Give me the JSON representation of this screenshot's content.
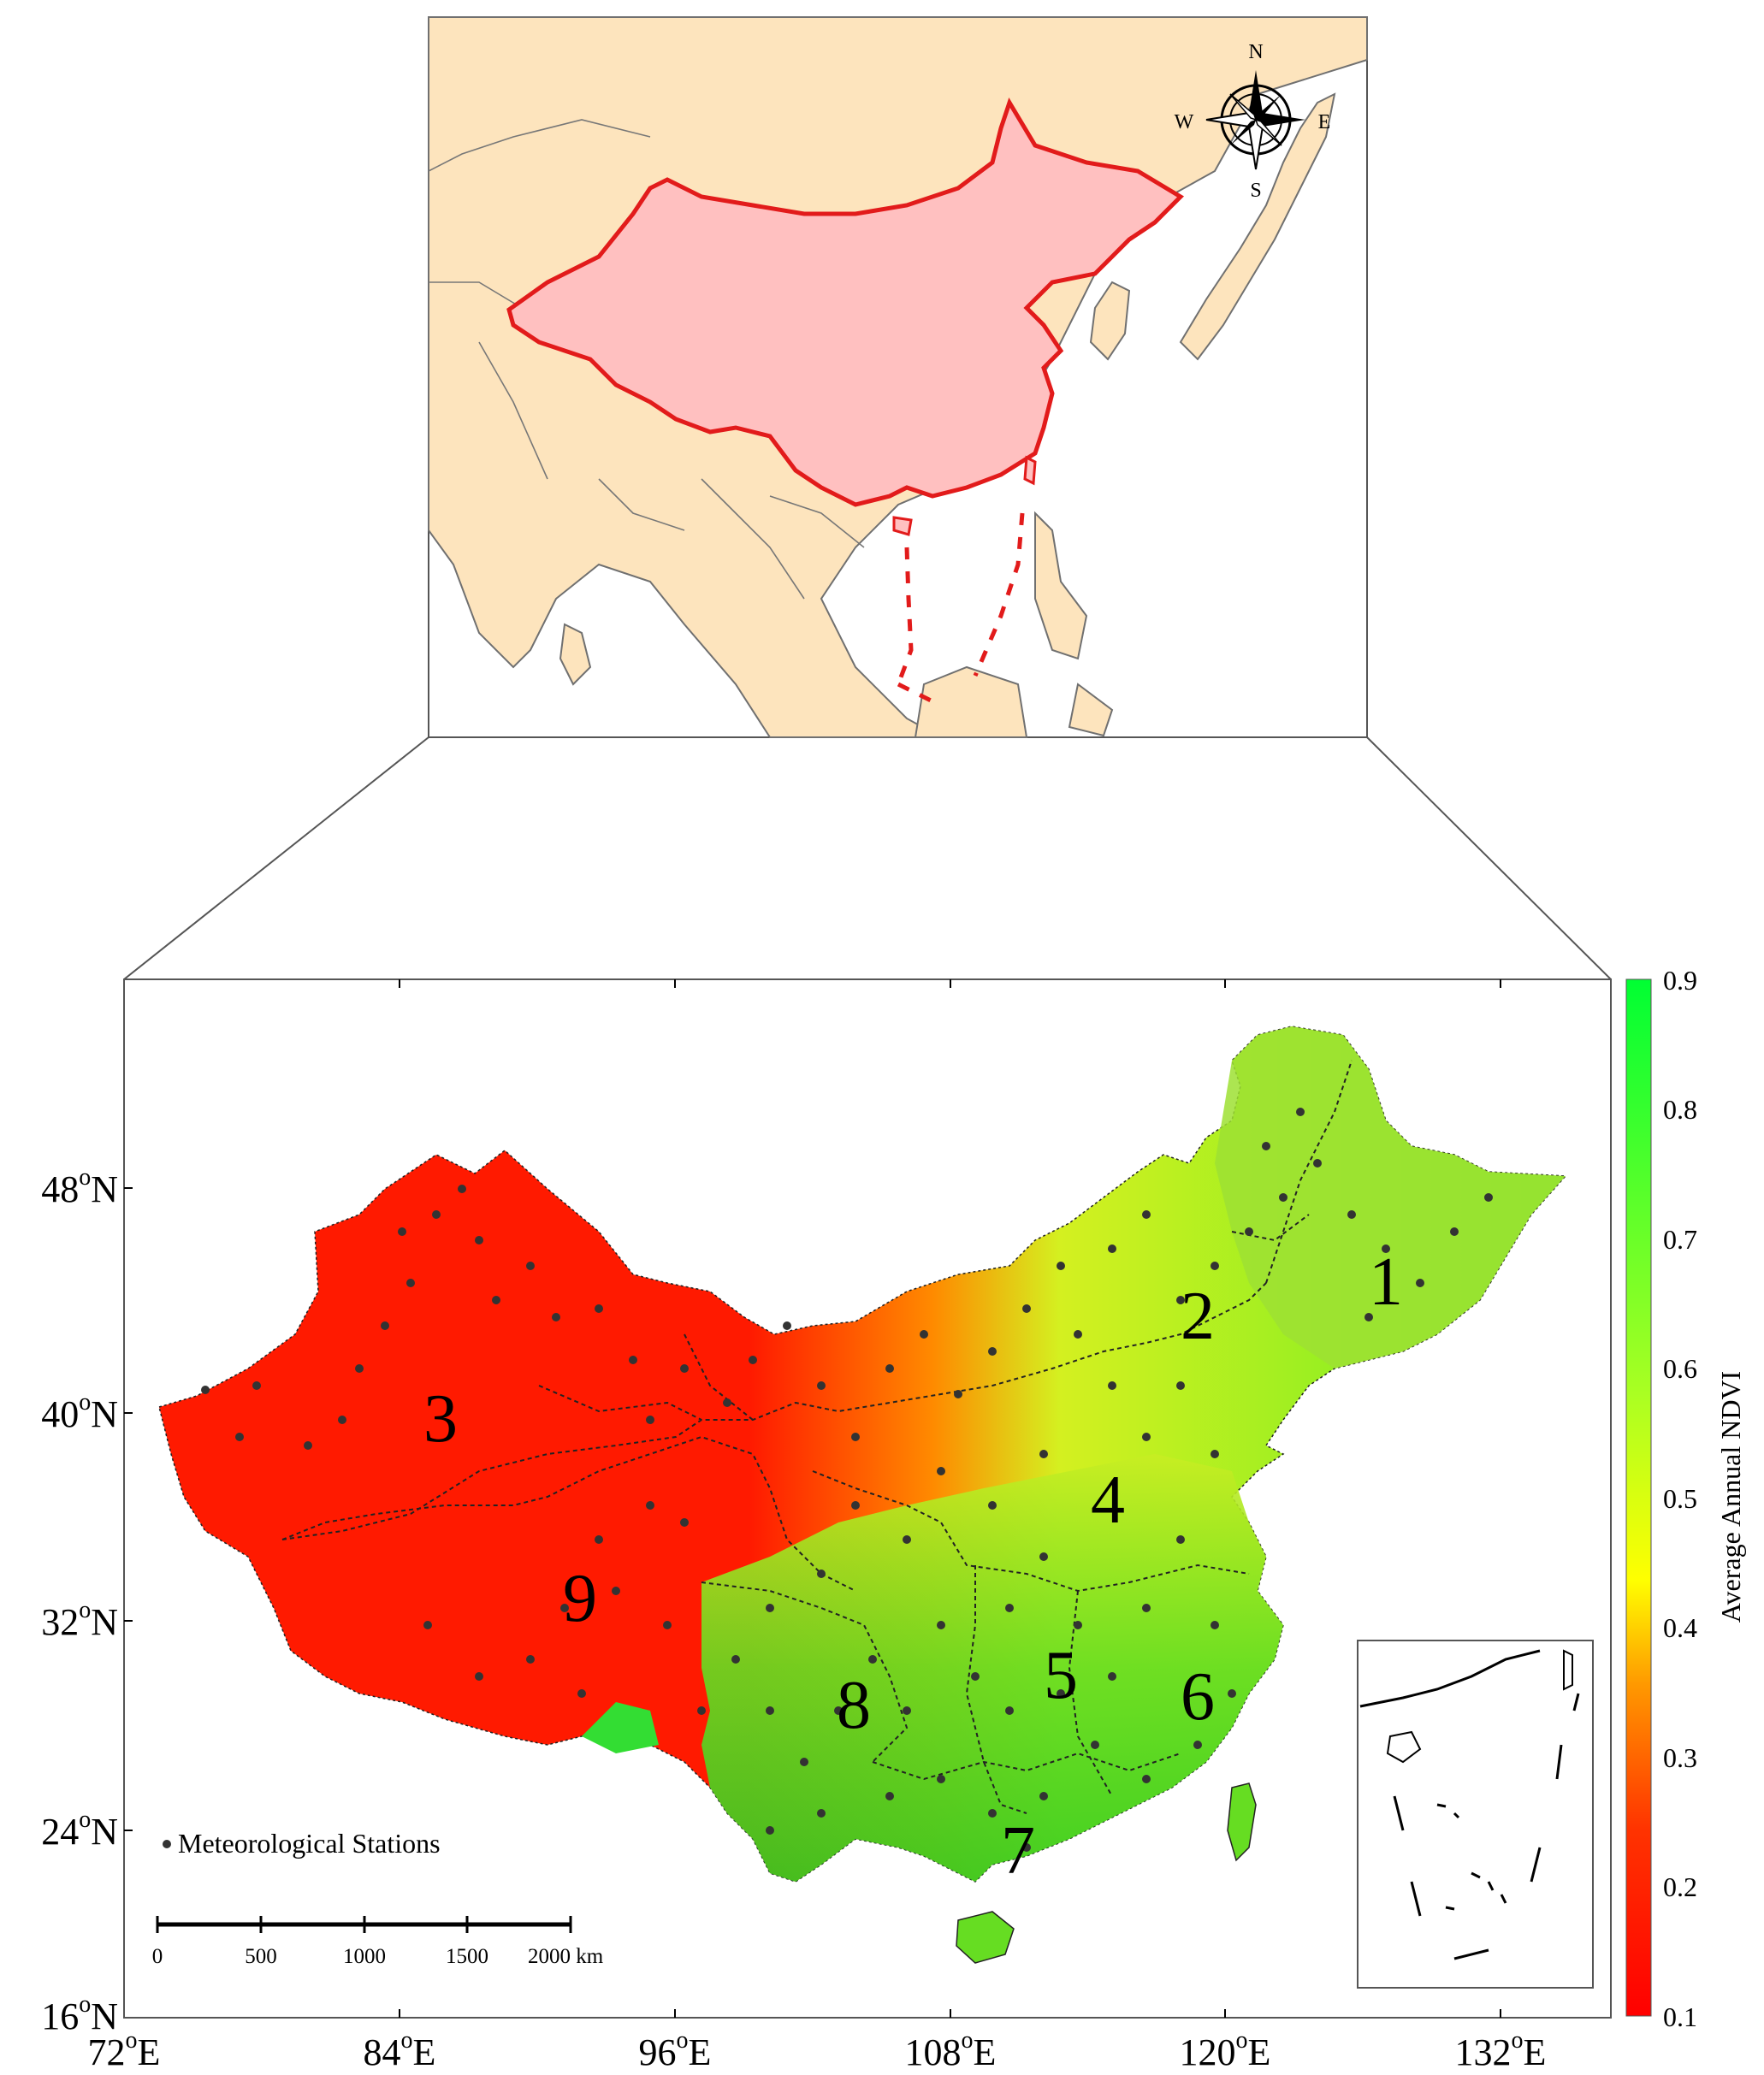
{
  "inset_map": {
    "compass": {
      "n": "N",
      "s": "S",
      "e": "E",
      "w": "W"
    }
  },
  "main_map": {
    "x_ticks": [
      "72",
      "84",
      "96",
      "108",
      "120",
      "132"
    ],
    "x_suffix": "E",
    "y_ticks": [
      "48",
      "40",
      "32",
      "24",
      "16"
    ],
    "y_suffix": "N",
    "degree_mark": "o",
    "region_numbers": [
      "1",
      "2",
      "3",
      "4",
      "5",
      "6",
      "7",
      "8",
      "9"
    ],
    "legend_label": "Meteorological Stations",
    "scale_bar": {
      "ticks": [
        "0",
        "500",
        "1000",
        "1500",
        "2000 km"
      ]
    }
  },
  "colorbar": {
    "label": "Average Annual NDVI",
    "ticks": [
      "0.9",
      "0.8",
      "0.7",
      "0.6",
      "0.5",
      "0.4",
      "0.3",
      "0.2",
      "0.1"
    ],
    "colors": [
      "#00ff33",
      "#66ff33",
      "#aaff22",
      "#ffff00",
      "#ffaa00",
      "#ff5500",
      "#ff0000"
    ]
  }
}
